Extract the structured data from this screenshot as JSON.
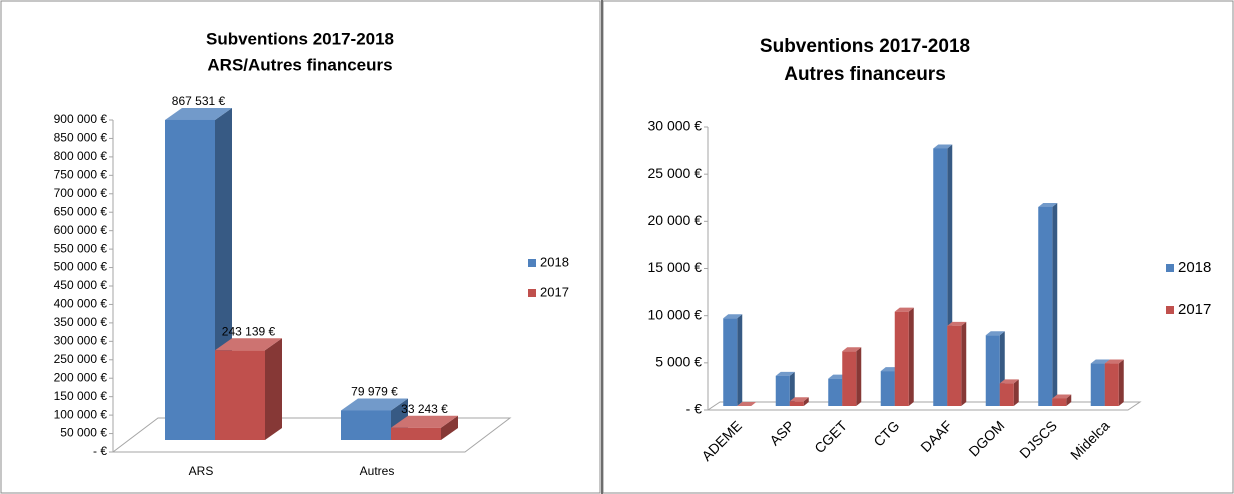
{
  "chart_data": [
    {
      "type": "bar3d",
      "title": "Subventions 2017-2018",
      "subtitle": "ARS/Autres financeurs",
      "categories": [
        "ARS",
        "Autres"
      ],
      "series": [
        {
          "name": "2018",
          "color": "#4f81bd",
          "values": [
            867531,
            79979
          ],
          "value_labels": [
            "867 531 €",
            "79 979 €"
          ]
        },
        {
          "name": "2017",
          "color": "#c0504d",
          "values": [
            243139,
            33243
          ],
          "value_labels": [
            "243 139 €",
            "33 243 €"
          ]
        }
      ],
      "ylim": [
        0,
        900000
      ],
      "yticks": [
        {
          "value": 0,
          "label": "-  €"
        },
        {
          "value": 50000,
          "label": "50 000 €"
        },
        {
          "value": 100000,
          "label": "100 000 €"
        },
        {
          "value": 150000,
          "label": "150 000 €"
        },
        {
          "value": 200000,
          "label": "200 000 €"
        },
        {
          "value": 250000,
          "label": "250 000 €"
        },
        {
          "value": 300000,
          "label": "300 000 €"
        },
        {
          "value": 350000,
          "label": "350 000 €"
        },
        {
          "value": 400000,
          "label": "400 000 €"
        },
        {
          "value": 450000,
          "label": "450 000 €"
        },
        {
          "value": 500000,
          "label": "500 000 €"
        },
        {
          "value": 550000,
          "label": "550 000 €"
        },
        {
          "value": 600000,
          "label": "600 000 €"
        },
        {
          "value": 650000,
          "label": "650 000 €"
        },
        {
          "value": 700000,
          "label": "700 000 €"
        },
        {
          "value": 750000,
          "label": "750 000 €"
        },
        {
          "value": 800000,
          "label": "800 000 €"
        },
        {
          "value": 850000,
          "label": "850 000 €"
        },
        {
          "value": 900000,
          "label": "900 000 €"
        }
      ],
      "legend": "right"
    },
    {
      "type": "bar3d",
      "title": "Subventions 2017-2018",
      "subtitle": "Autres financeurs",
      "categories": [
        "ADEME",
        "ASP",
        "CGET",
        "CTG",
        "DAAF",
        "DGOM",
        "DJSCS",
        "Midelca"
      ],
      "series": [
        {
          "name": "2018",
          "color": "#4f81bd",
          "values": [
            9300,
            3200,
            2900,
            3700,
            27300,
            7500,
            21100,
            4500
          ]
        },
        {
          "name": "2017",
          "color": "#c0504d",
          "values": [
            0,
            500,
            5800,
            10000,
            8500,
            2400,
            800,
            4500
          ]
        }
      ],
      "ylim": [
        0,
        30000
      ],
      "yticks": [
        {
          "value": 0,
          "label": "-  €"
        },
        {
          "value": 5000,
          "label": "5 000 €"
        },
        {
          "value": 10000,
          "label": "10 000 €"
        },
        {
          "value": 15000,
          "label": "15 000 €"
        },
        {
          "value": 20000,
          "label": "20 000 €"
        },
        {
          "value": 25000,
          "label": "25 000 €"
        },
        {
          "value": 30000,
          "label": "30 000 €"
        }
      ],
      "legend": "right"
    }
  ]
}
